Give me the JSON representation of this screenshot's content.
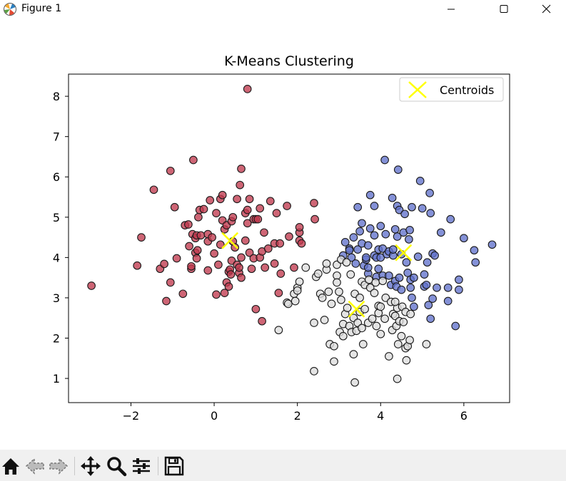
{
  "window": {
    "title": "Figure 1"
  },
  "toolbar": {
    "buttons": [
      "home-icon",
      "back-icon",
      "forward-icon",
      "pan-icon",
      "zoom-icon",
      "configure-subplots-icon",
      "save-icon"
    ]
  },
  "colors": {
    "cluster_red": "#c03a4e",
    "cluster_blue": "#6272cc",
    "cluster_gray": "#dcdcdc",
    "centroid": "#ffff00"
  },
  "chart_data": {
    "type": "scatter",
    "title": "K-Means Clustering",
    "xlabel": "",
    "ylabel": "",
    "xlim": [
      -3.5,
      7.1
    ],
    "ylim": [
      0.4,
      8.55
    ],
    "xticks": [
      -2,
      0,
      2,
      4,
      6
    ],
    "yticks": [
      1,
      2,
      3,
      4,
      5,
      6,
      7,
      8
    ],
    "xtick_labels": [
      "−2",
      "0",
      "2",
      "4",
      "6"
    ],
    "ytick_labels": [
      "1",
      "2",
      "3",
      "4",
      "5",
      "6",
      "7",
      "8"
    ],
    "grid": false,
    "legend": {
      "placement": "top-right",
      "entries": [
        "Centroids"
      ]
    },
    "series": [
      {
        "color": "#c03a4e",
        "points": [
          [
            -2.95,
            3.3
          ],
          [
            -1.85,
            3.8
          ],
          [
            -1.75,
            4.5
          ],
          [
            -1.45,
            5.68
          ],
          [
            -1.3,
            3.72
          ],
          [
            -1.2,
            3.84
          ],
          [
            -1.15,
            2.92
          ],
          [
            -1.05,
            3.38
          ],
          [
            -1.05,
            6.15
          ],
          [
            -0.95,
            5.25
          ],
          [
            -0.9,
            3.98
          ],
          [
            -0.75,
            3.1
          ],
          [
            -0.7,
            4.8
          ],
          [
            -0.62,
            4.82
          ],
          [
            -0.6,
            4.28
          ],
          [
            -0.55,
            3.72
          ],
          [
            -0.55,
            3.78
          ],
          [
            -0.52,
            4.58
          ],
          [
            -0.5,
            6.42
          ],
          [
            -0.45,
            4.12
          ],
          [
            -0.45,
            4.48
          ],
          [
            -0.42,
            4.55
          ],
          [
            -0.42,
            3.98
          ],
          [
            -0.4,
            4.18
          ],
          [
            -0.38,
            5.0
          ],
          [
            -0.35,
            5.18
          ],
          [
            -0.32,
            4.55
          ],
          [
            -0.25,
            5.2
          ],
          [
            -0.15,
            3.68
          ],
          [
            -0.15,
            4.58
          ],
          [
            -0.15,
            4.4
          ],
          [
            -0.1,
            5.42
          ],
          [
            -0.05,
            4.5
          ],
          [
            0.0,
            4.1
          ],
          [
            0.05,
            3.08
          ],
          [
            0.05,
            5.1
          ],
          [
            0.1,
            3.82
          ],
          [
            0.15,
            5.45
          ],
          [
            0.15,
            4.32
          ],
          [
            0.2,
            4.92
          ],
          [
            0.2,
            5.55
          ],
          [
            0.25,
            4.7
          ],
          [
            0.25,
            3.12
          ],
          [
            0.3,
            3.38
          ],
          [
            0.3,
            4.8
          ],
          [
            0.35,
            3.65
          ],
          [
            0.35,
            3.28
          ],
          [
            0.38,
            3.7
          ],
          [
            0.4,
            3.58
          ],
          [
            0.42,
            3.92
          ],
          [
            0.42,
            4.9
          ],
          [
            0.45,
            5.0
          ],
          [
            0.45,
            4.4
          ],
          [
            0.5,
            4.25
          ],
          [
            0.55,
            5.45
          ],
          [
            0.55,
            3.82
          ],
          [
            0.6,
            3.62
          ],
          [
            0.6,
            3.75
          ],
          [
            0.62,
            5.8
          ],
          [
            0.65,
            3.5
          ],
          [
            0.65,
            4.0
          ],
          [
            0.65,
            6.2
          ],
          [
            0.75,
            5.1
          ],
          [
            0.75,
            4.42
          ],
          [
            0.8,
            5.18
          ],
          [
            0.8,
            8.18
          ],
          [
            0.8,
            4.85
          ],
          [
            0.85,
            5.45
          ],
          [
            0.85,
            4.12
          ],
          [
            0.9,
            3.72
          ],
          [
            0.95,
            3.98
          ],
          [
            0.95,
            4.95
          ],
          [
            1.0,
            2.72
          ],
          [
            1.0,
            4.95
          ],
          [
            1.05,
            4.95
          ],
          [
            1.1,
            4.0
          ],
          [
            1.1,
            5.22
          ],
          [
            1.15,
            2.42
          ],
          [
            1.15,
            4.15
          ],
          [
            1.2,
            4.62
          ],
          [
            1.22,
            3.75
          ],
          [
            1.3,
            4.22
          ],
          [
            1.35,
            5.4
          ],
          [
            1.45,
            3.85
          ],
          [
            1.45,
            4.35
          ],
          [
            1.5,
            5.1
          ],
          [
            1.55,
            3.12
          ],
          [
            1.58,
            4.35
          ],
          [
            1.6,
            3.6
          ],
          [
            1.75,
            5.28
          ],
          [
            1.8,
            4.52
          ],
          [
            1.92,
            3.75
          ],
          [
            2.05,
            4.62
          ],
          [
            2.05,
            4.42
          ],
          [
            2.05,
            4.75
          ],
          [
            2.1,
            4.35
          ],
          [
            2.4,
            5.35
          ],
          [
            2.42,
            4.95
          ]
        ]
      },
      {
        "color": "#6272cc",
        "points": [
          [
            3.1,
            4.05
          ],
          [
            3.15,
            4.38
          ],
          [
            3.25,
            4.22
          ],
          [
            3.25,
            4.18
          ],
          [
            3.3,
            4.0
          ],
          [
            3.35,
            4.5
          ],
          [
            3.4,
            3.85
          ],
          [
            3.45,
            4.2
          ],
          [
            3.45,
            5.25
          ],
          [
            3.5,
            4.65
          ],
          [
            3.55,
            4.35
          ],
          [
            3.55,
            4.85
          ],
          [
            3.6,
            3.8
          ],
          [
            3.65,
            3.95
          ],
          [
            3.65,
            4.0
          ],
          [
            3.7,
            3.6
          ],
          [
            3.7,
            4.3
          ],
          [
            3.7,
            3.75
          ],
          [
            3.75,
            5.55
          ],
          [
            3.75,
            4.72
          ],
          [
            3.85,
            4.05
          ],
          [
            3.85,
            5.28
          ],
          [
            3.85,
            4.55
          ],
          [
            3.9,
            4.0
          ],
          [
            3.9,
            3.52
          ],
          [
            3.95,
            4.2
          ],
          [
            3.95,
            3.72
          ],
          [
            4.0,
            4.0
          ],
          [
            4.0,
            4.78
          ],
          [
            4.05,
            4.22
          ],
          [
            4.05,
            3.55
          ],
          [
            4.1,
            6.42
          ],
          [
            4.12,
            4.58
          ],
          [
            4.15,
            4.08
          ],
          [
            4.2,
            3.55
          ],
          [
            4.2,
            4.15
          ],
          [
            4.25,
            3.32
          ],
          [
            4.28,
            5.48
          ],
          [
            4.3,
            4.05
          ],
          [
            4.3,
            4.2
          ],
          [
            4.35,
            4.7
          ],
          [
            4.35,
            3.42
          ],
          [
            4.38,
            3.28
          ],
          [
            4.4,
            5.28
          ],
          [
            4.4,
            4.52
          ],
          [
            4.42,
            6.18
          ],
          [
            4.45,
            5.18
          ],
          [
            4.45,
            3.5
          ],
          [
            4.5,
            4.08
          ],
          [
            4.5,
            3.2
          ],
          [
            4.55,
            4.62
          ],
          [
            4.58,
            5.08
          ],
          [
            4.62,
            3.88
          ],
          [
            4.65,
            3.62
          ],
          [
            4.68,
            4.45
          ],
          [
            4.7,
            4.68
          ],
          [
            4.72,
            3.25
          ],
          [
            4.72,
            3.45
          ],
          [
            4.75,
            5.25
          ],
          [
            4.75,
            3.0
          ],
          [
            4.8,
            3.5
          ],
          [
            4.8,
            2.78
          ],
          [
            4.9,
            4.02
          ],
          [
            4.95,
            5.9
          ],
          [
            5.0,
            5.22
          ],
          [
            5.05,
            3.58
          ],
          [
            5.05,
            3.28
          ],
          [
            5.1,
            3.32
          ],
          [
            5.12,
            3.88
          ],
          [
            5.15,
            2.82
          ],
          [
            5.18,
            5.6
          ],
          [
            5.2,
            5.1
          ],
          [
            5.2,
            2.48
          ],
          [
            5.25,
            2.98
          ],
          [
            5.25,
            4.1
          ],
          [
            5.3,
            4.05
          ],
          [
            5.35,
            3.25
          ],
          [
            5.45,
            4.62
          ],
          [
            5.62,
            3.25
          ],
          [
            5.62,
            2.92
          ],
          [
            5.68,
            4.95
          ],
          [
            5.8,
            2.3
          ],
          [
            5.88,
            3.45
          ],
          [
            5.88,
            3.2
          ],
          [
            6.0,
            4.48
          ],
          [
            6.25,
            4.18
          ],
          [
            6.28,
            3.88
          ],
          [
            6.68,
            4.32
          ]
        ]
      },
      {
        "color": "#dcdcdc",
        "points": [
          [
            1.55,
            2.2
          ],
          [
            1.75,
            2.88
          ],
          [
            1.78,
            2.85
          ],
          [
            1.92,
            3.1
          ],
          [
            1.95,
            2.92
          ],
          [
            2.0,
            3.25
          ],
          [
            2.0,
            3.18
          ],
          [
            2.05,
            3.4
          ],
          [
            2.2,
            3.75
          ],
          [
            2.4,
            2.38
          ],
          [
            2.4,
            1.18
          ],
          [
            2.45,
            3.52
          ],
          [
            2.5,
            3.6
          ],
          [
            2.55,
            3.1
          ],
          [
            2.6,
            3.0
          ],
          [
            2.65,
            2.45
          ],
          [
            2.7,
            3.7
          ],
          [
            2.7,
            3.85
          ],
          [
            2.75,
            3.15
          ],
          [
            2.78,
            1.85
          ],
          [
            2.82,
            2.85
          ],
          [
            2.88,
            1.42
          ],
          [
            2.88,
            1.8
          ],
          [
            2.95,
            3.82
          ],
          [
            2.95,
            3.55
          ],
          [
            2.95,
            3.38
          ],
          [
            3.0,
            3.15
          ],
          [
            3.02,
            2.15
          ],
          [
            3.05,
            3.95
          ],
          [
            3.05,
            2.95
          ],
          [
            3.1,
            2.35
          ],
          [
            3.1,
            2.05
          ],
          [
            3.15,
            2.6
          ],
          [
            3.18,
            3.88
          ],
          [
            3.2,
            2.75
          ],
          [
            3.25,
            2.3
          ],
          [
            3.28,
            3.58
          ],
          [
            3.3,
            2.15
          ],
          [
            3.35,
            2.5
          ],
          [
            3.35,
            1.6
          ],
          [
            3.38,
            3.1
          ],
          [
            3.38,
            0.9
          ],
          [
            3.42,
            2.18
          ],
          [
            3.45,
            2.38
          ],
          [
            3.5,
            3.0
          ],
          [
            3.5,
            2.65
          ],
          [
            3.55,
            3.4
          ],
          [
            3.55,
            2.25
          ],
          [
            3.58,
            1.85
          ],
          [
            3.62,
            3.32
          ],
          [
            3.62,
            2.72
          ],
          [
            3.7,
            2.38
          ],
          [
            3.72,
            3.45
          ],
          [
            3.75,
            3.25
          ],
          [
            3.8,
            2.48
          ],
          [
            3.85,
            3.12
          ],
          [
            3.88,
            3.38
          ],
          [
            3.9,
            2.3
          ],
          [
            3.95,
            2.8
          ],
          [
            3.95,
            2.62
          ],
          [
            4.0,
            2.78
          ],
          [
            4.0,
            2.1
          ],
          [
            4.05,
            3.42
          ],
          [
            4.1,
            2.48
          ],
          [
            4.12,
            3.0
          ],
          [
            4.2,
            1.55
          ],
          [
            4.25,
            2.9
          ],
          [
            4.28,
            2.2
          ],
          [
            4.3,
            2.6
          ],
          [
            4.35,
            2.55
          ],
          [
            4.38,
            2.3
          ],
          [
            4.4,
            2.75
          ],
          [
            4.4,
            0.99
          ],
          [
            4.42,
            1.85
          ],
          [
            4.45,
            2.42
          ],
          [
            4.5,
            2.05
          ],
          [
            4.52,
            2.78
          ],
          [
            4.55,
            2.4
          ],
          [
            4.6,
            2.65
          ],
          [
            4.6,
            1.75
          ],
          [
            4.62,
            1.45
          ],
          [
            4.65,
            1.8
          ],
          [
            4.7,
            1.95
          ],
          [
            4.72,
            2.6
          ],
          [
            5.1,
            1.85
          ],
          [
            4.35,
            2.9
          ]
        ]
      }
    ],
    "centroids": [
      [
        0.38,
        4.42
      ],
      [
        4.55,
        4.12
      ],
      [
        3.42,
        2.72
      ]
    ]
  }
}
